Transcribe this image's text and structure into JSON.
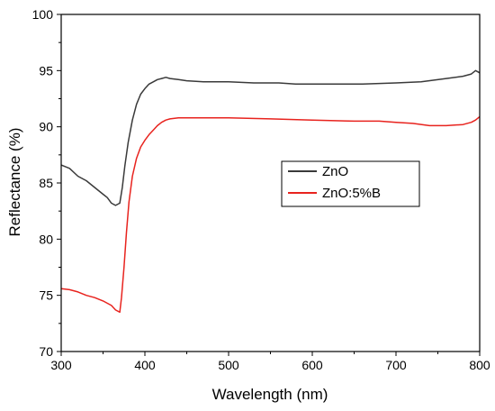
{
  "chart_data": {
    "type": "line",
    "title": "",
    "xlabel": "Wavelength (nm)",
    "ylabel": "Reflectance (%)",
    "xlim": [
      300,
      800
    ],
    "ylim": [
      70,
      100
    ],
    "x_ticks": [
      300,
      400,
      500,
      600,
      700,
      800
    ],
    "y_ticks": [
      70,
      75,
      80,
      85,
      90,
      95,
      100
    ],
    "x_tick_labels": [
      "300",
      "400",
      "500",
      "600",
      "700",
      "800"
    ],
    "y_tick_labels": [
      "70",
      "75",
      "80",
      "85",
      "90",
      "95",
      "100"
    ],
    "grid": false,
    "legend_position": "center-right",
    "series": [
      {
        "name": "ZnO",
        "color": "#3a3a3a",
        "x": [
          300,
          310,
          320,
          330,
          340,
          350,
          355,
          360,
          365,
          370,
          373,
          376,
          380,
          385,
          390,
          395,
          400,
          405,
          410,
          415,
          420,
          425,
          430,
          440,
          450,
          470,
          500,
          530,
          560,
          580,
          600,
          630,
          660,
          700,
          730,
          760,
          780,
          790,
          795,
          800
        ],
        "y": [
          86.6,
          86.3,
          85.6,
          85.2,
          84.6,
          84.0,
          83.7,
          83.2,
          83.0,
          83.2,
          84.6,
          86.5,
          88.6,
          90.6,
          92.0,
          92.9,
          93.4,
          93.8,
          94.0,
          94.2,
          94.3,
          94.4,
          94.3,
          94.2,
          94.1,
          94.0,
          94.0,
          93.9,
          93.9,
          93.8,
          93.8,
          93.8,
          93.8,
          93.9,
          94.0,
          94.3,
          94.5,
          94.7,
          95.0,
          94.8
        ]
      },
      {
        "name": "ZnO:5%B",
        "color": "#e8231e",
        "x": [
          300,
          310,
          320,
          330,
          340,
          350,
          360,
          365,
          370,
          372,
          375,
          378,
          381,
          385,
          390,
          395,
          400,
          405,
          410,
          415,
          420,
          425,
          430,
          440,
          450,
          470,
          500,
          550,
          600,
          650,
          680,
          700,
          720,
          740,
          760,
          780,
          790,
          795,
          800
        ],
        "y": [
          75.6,
          75.5,
          75.3,
          75.0,
          74.8,
          74.5,
          74.1,
          73.7,
          73.5,
          74.8,
          77.5,
          80.6,
          83.3,
          85.6,
          87.2,
          88.2,
          88.8,
          89.3,
          89.7,
          90.1,
          90.4,
          90.6,
          90.7,
          90.8,
          90.8,
          90.8,
          90.8,
          90.7,
          90.6,
          90.5,
          90.5,
          90.4,
          90.3,
          90.1,
          90.1,
          90.2,
          90.4,
          90.6,
          90.9
        ]
      }
    ]
  }
}
